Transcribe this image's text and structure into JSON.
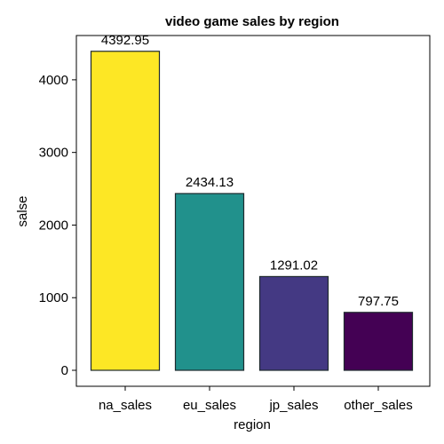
{
  "chart_data": {
    "type": "bar",
    "title": "video game sales by region",
    "xlabel": "region",
    "ylabel": "salse",
    "categories": [
      "na_sales",
      "eu_sales",
      "jp_sales",
      "other_sales"
    ],
    "values": [
      4392.95,
      2434.13,
      1291.02,
      797.75
    ],
    "value_labels": [
      "4392.95",
      "2434.13",
      "1291.02",
      "797.75"
    ],
    "colors": [
      "#fde725",
      "#21918c",
      "#443983",
      "#440154"
    ],
    "yticks": [
      0,
      1000,
      2000,
      3000,
      4000
    ],
    "ytick_labels": [
      "0",
      "1000",
      "2000",
      "3000",
      "4000"
    ],
    "ylim": [
      -220,
      4610
    ],
    "grid": false,
    "legend": "none"
  }
}
